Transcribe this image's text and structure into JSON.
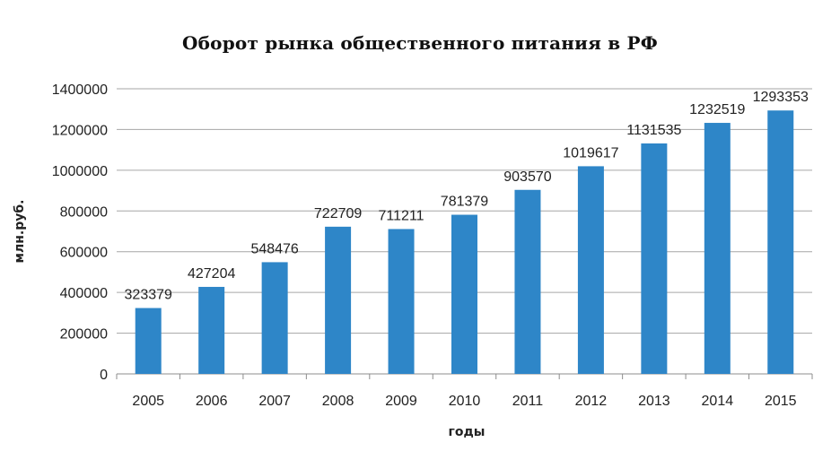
{
  "chart_data": {
    "type": "bar",
    "title": "Оборот рынка общественного питания в РФ",
    "xlabel": "годы",
    "ylabel": "млн.руб.",
    "categories": [
      "2005",
      "2006",
      "2007",
      "2008",
      "2009",
      "2010",
      "2011",
      "2012",
      "2013",
      "2014",
      "2015"
    ],
    "values": [
      323379,
      427204,
      548476,
      722709,
      711211,
      781379,
      903570,
      1019617,
      1131535,
      1232519,
      1293353
    ],
    "data_labels": [
      "323379",
      "427204",
      "548476",
      "722709",
      "711211",
      "781379",
      "903570",
      "1019617",
      "1131535",
      "1232519",
      "1293353"
    ],
    "ylim": [
      0,
      1400000
    ],
    "yticks": [
      0,
      200000,
      400000,
      600000,
      800000,
      1000000,
      1200000,
      1400000
    ],
    "ytick_labels": [
      "0",
      "200000",
      "400000",
      "600000",
      "800000",
      "1000000",
      "1200000",
      "1400000"
    ],
    "grid": true,
    "bar_color": "#2E86C8",
    "grid_color": "#A6A6A6"
  }
}
